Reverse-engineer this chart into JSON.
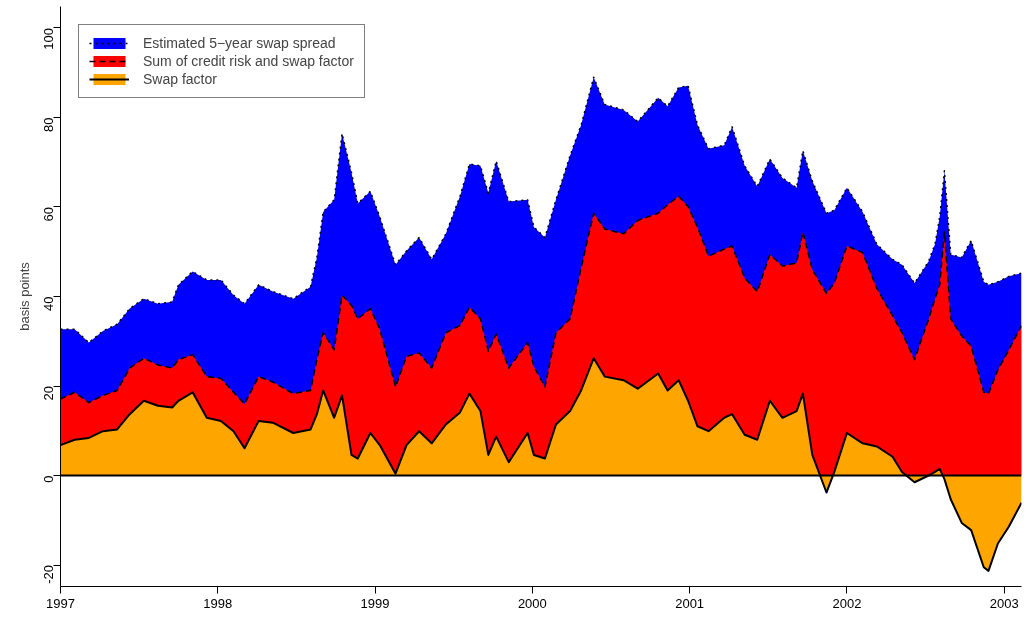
{
  "chart_data": {
    "type": "area",
    "ylabel": "basis points",
    "x": [
      1997.0,
      1997.09,
      1997.18,
      1997.27,
      1997.36,
      1997.44,
      1997.53,
      1997.62,
      1997.71,
      1997.75,
      1997.84,
      1997.93,
      1998.02,
      1998.1,
      1998.17,
      1998.26,
      1998.35,
      1998.48,
      1998.59,
      1998.63,
      1998.67,
      1998.74,
      1998.79,
      1998.85,
      1998.89,
      1998.97,
      1999.03,
      1999.13,
      1999.2,
      1999.28,
      1999.36,
      1999.45,
      1999.54,
      1999.6,
      1999.67,
      1999.72,
      1999.77,
      1999.85,
      1999.97,
      2000.01,
      2000.08,
      2000.15,
      2000.24,
      2000.31,
      2000.39,
      2000.46,
      2000.58,
      2000.67,
      2000.8,
      2000.86,
      2000.93,
      2000.99,
      2001.05,
      2001.12,
      2001.22,
      2001.27,
      2001.35,
      2001.43,
      2001.51,
      2001.59,
      2001.68,
      2001.72,
      2001.78,
      2001.87,
      2001.92,
      2002.0,
      2002.1,
      2002.19,
      2002.29,
      2002.35,
      2002.43,
      2002.52,
      2002.56,
      2002.59,
      2002.62,
      2002.66,
      2002.73,
      2002.79,
      2002.87,
      2002.9,
      2002.96,
      2003.03,
      2003.11
    ],
    "series": [
      {
        "name": "Estimated 5−year swap spread",
        "color": "#0000ff",
        "line_style": "dotted",
        "values": [
          32.7,
          32.7,
          29.7,
          32.3,
          33.8,
          37.3,
          39.5,
          38.4,
          38.8,
          42.6,
          45.6,
          43.7,
          43.7,
          40.3,
          38.4,
          42.6,
          41.1,
          39.5,
          42.2,
          48.7,
          58.9,
          61.6,
          76.4,
          67.7,
          60.8,
          63.5,
          57.8,
          47.1,
          50.2,
          53.2,
          48.3,
          54.0,
          62.4,
          69.6,
          69.2,
          63.1,
          70.3,
          61.2,
          61.6,
          55.5,
          53.2,
          61.6,
          71.5,
          78.3,
          89.0,
          82.9,
          81.7,
          79.1,
          84.4,
          82.5,
          86.7,
          87.1,
          78.3,
          73.0,
          73.8,
          77.9,
          69.2,
          64.6,
          70.7,
          66.5,
          64.3,
          72.6,
          65.8,
          58.6,
          59.3,
          64.3,
          58.9,
          51.7,
          48.3,
          47.1,
          43.0,
          47.9,
          51.7,
          57.8,
          68.1,
          49.4,
          48.7,
          52.5,
          43.3,
          42.6,
          43.3,
          44.5,
          45.2
        ]
      },
      {
        "name": "Sum of credit risk and swap factor",
        "color": "#ff0000",
        "line_style": "dashed",
        "values": [
          17.1,
          18.6,
          16.3,
          17.9,
          19.0,
          24.0,
          26.2,
          24.7,
          24.0,
          25.9,
          27.0,
          22.1,
          21.7,
          18.6,
          16.0,
          22.1,
          20.9,
          18.3,
          19.0,
          25.9,
          31.9,
          28.1,
          40.3,
          38.0,
          35.0,
          37.3,
          32.7,
          19.8,
          26.6,
          27.4,
          24.0,
          31.9,
          33.5,
          37.6,
          35.0,
          27.8,
          31.6,
          24.0,
          29.7,
          24.3,
          19.8,
          31.9,
          35.0,
          46.4,
          58.6,
          55.1,
          54.0,
          57.0,
          58.6,
          60.5,
          62.4,
          60.1,
          55.5,
          49.0,
          50.6,
          51.3,
          44.1,
          41.1,
          49.4,
          46.8,
          47.5,
          54.4,
          46.0,
          40.7,
          43.0,
          51.3,
          49.8,
          41.8,
          35.7,
          31.9,
          25.9,
          35.0,
          39.5,
          42.6,
          54.4,
          35.0,
          31.2,
          28.9,
          18.6,
          18.3,
          23.6,
          28.1,
          33.5
        ]
      },
      {
        "name": "Swap factor",
        "color": "#ffa500",
        "line_style": "solid",
        "values": [
          6.8,
          8.0,
          8.4,
          9.9,
          10.3,
          13.7,
          16.7,
          15.6,
          15.2,
          16.7,
          18.6,
          12.9,
          12.2,
          9.9,
          6.1,
          12.2,
          11.8,
          9.5,
          10.3,
          13.7,
          19.0,
          12.9,
          17.9,
          4.6,
          3.8,
          9.5,
          6.8,
          0.4,
          6.8,
          9.9,
          7.2,
          11.4,
          14.1,
          18.3,
          14.4,
          4.6,
          8.7,
          3.0,
          9.5,
          4.6,
          3.8,
          11.4,
          14.4,
          19.0,
          26.2,
          22.1,
          21.3,
          19.4,
          22.8,
          19.0,
          21.3,
          16.7,
          11.0,
          9.9,
          12.9,
          13.7,
          9.1,
          8.0,
          16.7,
          12.9,
          14.4,
          18.3,
          4.6,
          -3.8,
          0.8,
          9.5,
          7.2,
          6.5,
          4.2,
          0.8,
          -1.5,
          0,
          0.8,
          1.5,
          -0.8,
          -5.3,
          -10.6,
          -12.2,
          -20.5,
          -21.3,
          -15.2,
          -11.4,
          -6.1
        ]
      }
    ],
    "xlim": [
      1997.0,
      2003.11
    ],
    "xticks": [
      1997,
      1998,
      1999,
      2000,
      2001,
      2002,
      2003
    ],
    "ylim": [
      -24.8,
      104.8
    ],
    "yticks": [
      -20,
      0,
      20,
      40,
      60,
      80,
      100
    ],
    "ref_lines": [
      {
        "axis": "y",
        "value": 0,
        "color": "#000000"
      }
    ],
    "grid": false,
    "legend": "top left"
  }
}
